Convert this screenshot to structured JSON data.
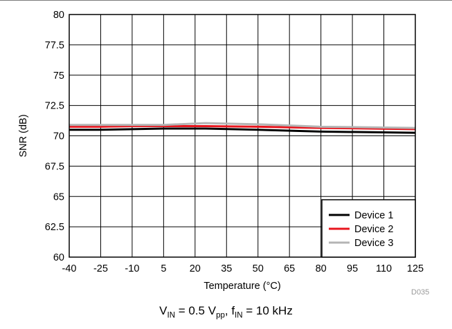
{
  "chart_data": {
    "type": "line",
    "xlabel": "Temperature (°C)",
    "ylabel": "SNR (dB)",
    "xlim": [
      -40,
      125
    ],
    "ylim": [
      60,
      80
    ],
    "x_ticks": [
      "-40",
      "-25",
      "-10",
      "5",
      "20",
      "35",
      "50",
      "65",
      "80",
      "95",
      "110",
      "125"
    ],
    "y_ticks": [
      "60",
      "62.5",
      "65",
      "67.5",
      "70",
      "72.5",
      "75",
      "77.5",
      "80"
    ],
    "grid": true,
    "legend_position": "bottom-right",
    "x": [
      -40,
      -25,
      -10,
      5,
      25,
      50,
      80,
      125
    ],
    "series": [
      {
        "name": "Device 1",
        "color": "#000000",
        "values": [
          70.5,
          70.5,
          70.55,
          70.6,
          70.6,
          70.5,
          70.35,
          70.25
        ]
      },
      {
        "name": "Device 2",
        "color": "#e8141c",
        "values": [
          70.75,
          70.75,
          70.8,
          70.8,
          70.8,
          70.75,
          70.65,
          70.55
        ]
      },
      {
        "name": "Device 3",
        "color": "#b4b4b4",
        "values": [
          70.9,
          70.9,
          70.9,
          70.9,
          71.05,
          70.95,
          70.75,
          70.65
        ]
      }
    ]
  },
  "figure_id": "D035",
  "caption": {
    "v_main": "V",
    "v_sub": "IN",
    "v_rest": " = 0.5 V",
    "vpp_sub": "pp",
    "f_sep": ", f",
    "f_sub": "IN",
    "f_rest": " = 10 kHz"
  }
}
